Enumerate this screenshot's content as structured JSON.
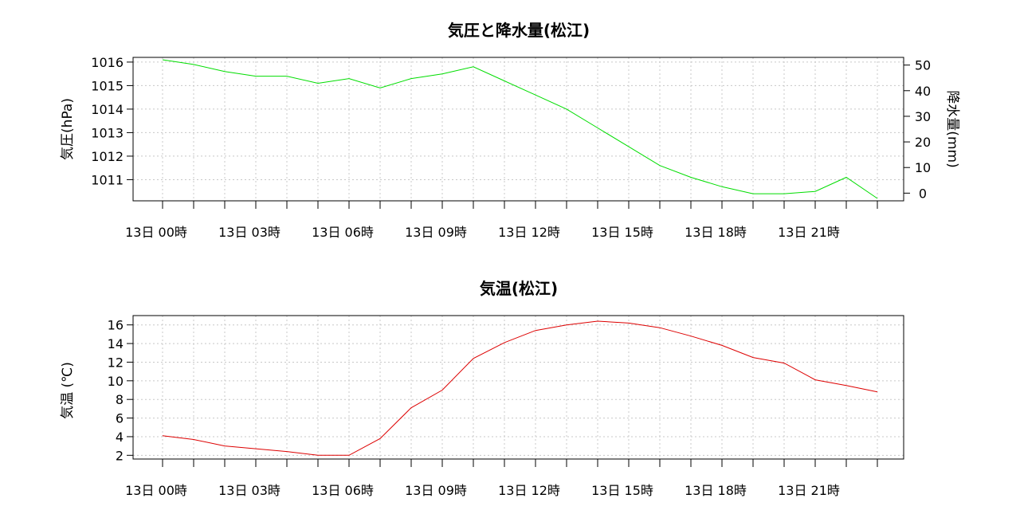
{
  "chart_data": [
    {
      "type": "line",
      "title": "気圧と降水量(松江)",
      "ylabel": "気圧(hPa)",
      "y2label": "降水量(mm)",
      "x_tick_labels": [
        "13日 00時",
        "13日 03時",
        "13日 06時",
        "13日 09時",
        "13日 12時",
        "13日 15時",
        "13日 18時",
        "13日 21時"
      ],
      "x": [
        0,
        1,
        2,
        3,
        4,
        5,
        6,
        7,
        8,
        9,
        10,
        11,
        12,
        13,
        14,
        15,
        16,
        17,
        18,
        19,
        20,
        21,
        22,
        23
      ],
      "ylim": [
        1010.1,
        1016.2
      ],
      "yticks": [
        1011,
        1012,
        1013,
        1014,
        1015,
        1016
      ],
      "y2lim": [
        -3,
        53
      ],
      "y2ticks": [
        0,
        10,
        20,
        30,
        40,
        50
      ],
      "grid": true,
      "series": [
        {
          "axis": "left",
          "color": "#00dd00",
          "values": [
            1016.1,
            1015.9,
            1015.6,
            1015.4,
            1015.4,
            1015.1,
            1015.3,
            1014.9,
            1015.3,
            1015.5,
            1015.8,
            1015.2,
            1014.6,
            1014.0,
            1013.2,
            1012.4,
            1011.6,
            1011.1,
            1010.7,
            1010.4,
            1010.4,
            1010.5,
            1011.1,
            1010.2
          ]
        }
      ]
    },
    {
      "type": "line",
      "title": "気温(松江)",
      "ylabel": "気温 (℃)",
      "x_tick_labels": [
        "13日 00時",
        "13日 03時",
        "13日 06時",
        "13日 09時",
        "13日 12時",
        "13日 15時",
        "13日 18時",
        "13日 21時"
      ],
      "x": [
        0,
        1,
        2,
        3,
        4,
        5,
        6,
        7,
        8,
        9,
        10,
        11,
        12,
        13,
        14,
        15,
        16,
        17,
        18,
        19,
        20,
        21,
        22,
        23
      ],
      "ylim": [
        1.6,
        17
      ],
      "yticks": [
        2,
        4,
        6,
        8,
        10,
        12,
        14,
        16
      ],
      "grid": true,
      "series": [
        {
          "axis": "left",
          "color": "#dd0000",
          "values": [
            4.1,
            3.7,
            3.0,
            2.7,
            2.4,
            2.0,
            2.0,
            3.8,
            7.1,
            9.0,
            12.4,
            14.1,
            15.4,
            16.0,
            16.4,
            16.2,
            15.7,
            14.8,
            13.8,
            12.5,
            11.9,
            10.1,
            9.5,
            8.8
          ]
        }
      ]
    }
  ]
}
